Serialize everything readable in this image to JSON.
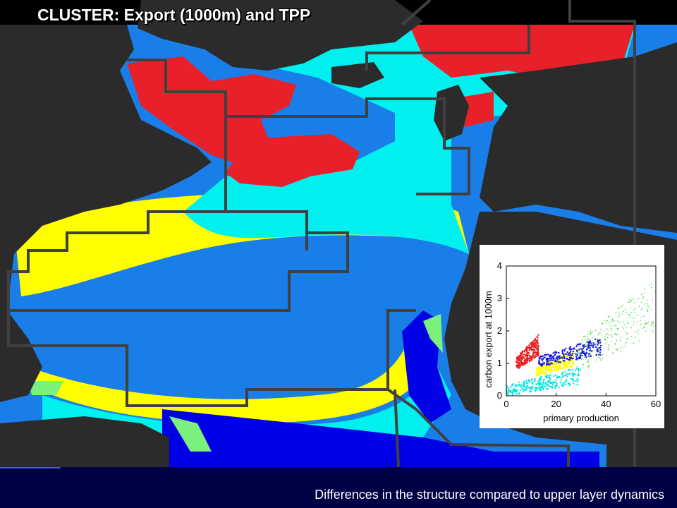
{
  "slide": {
    "title": "CLUSTER:  Export  (1000m) and TPP",
    "caption": "Differences in the structure compared to upper layer dynamics"
  },
  "map": {
    "colors": {
      "land": "#2b2b2b",
      "shelf": "#000000",
      "red_cluster": "#e8202a",
      "cyan_cluster": "#00f0f0",
      "yellow_cluster": "#ffff00",
      "blue_cluster": "#1a7ee8",
      "deep_blue_cluster": "#0000e6",
      "green_cluster": "#7cf07c",
      "province_lines": "#404040"
    }
  },
  "chart_data": {
    "type": "scatter",
    "xlabel": "primary production",
    "ylabel": "carbon export at 1000m",
    "xlim": [
      0,
      60
    ],
    "ylim": [
      0,
      4
    ],
    "xticks": [
      "0",
      "20",
      "40",
      "60"
    ],
    "yticks": [
      "0",
      "1",
      "2",
      "3",
      "4"
    ],
    "clusters": [
      {
        "color": "#00e5e5",
        "x_range": [
          0,
          30
        ],
        "y_range": [
          0,
          0.9
        ]
      },
      {
        "color": "#e82020",
        "x_range": [
          4,
          13
        ],
        "y_range": [
          0.8,
          1.9
        ]
      },
      {
        "color": "#ffff00",
        "x_range": [
          12,
          27
        ],
        "y_range": [
          0.6,
          1.4
        ]
      },
      {
        "color": "#1a1ae0",
        "x_range": [
          13,
          38
        ],
        "y_range": [
          0.9,
          1.8
        ]
      },
      {
        "color": "#2ad02a",
        "x_range": [
          28,
          60
        ],
        "y_range": [
          0.7,
          3.6
        ]
      }
    ]
  },
  "footer": {
    "bar_color": "#000044"
  }
}
